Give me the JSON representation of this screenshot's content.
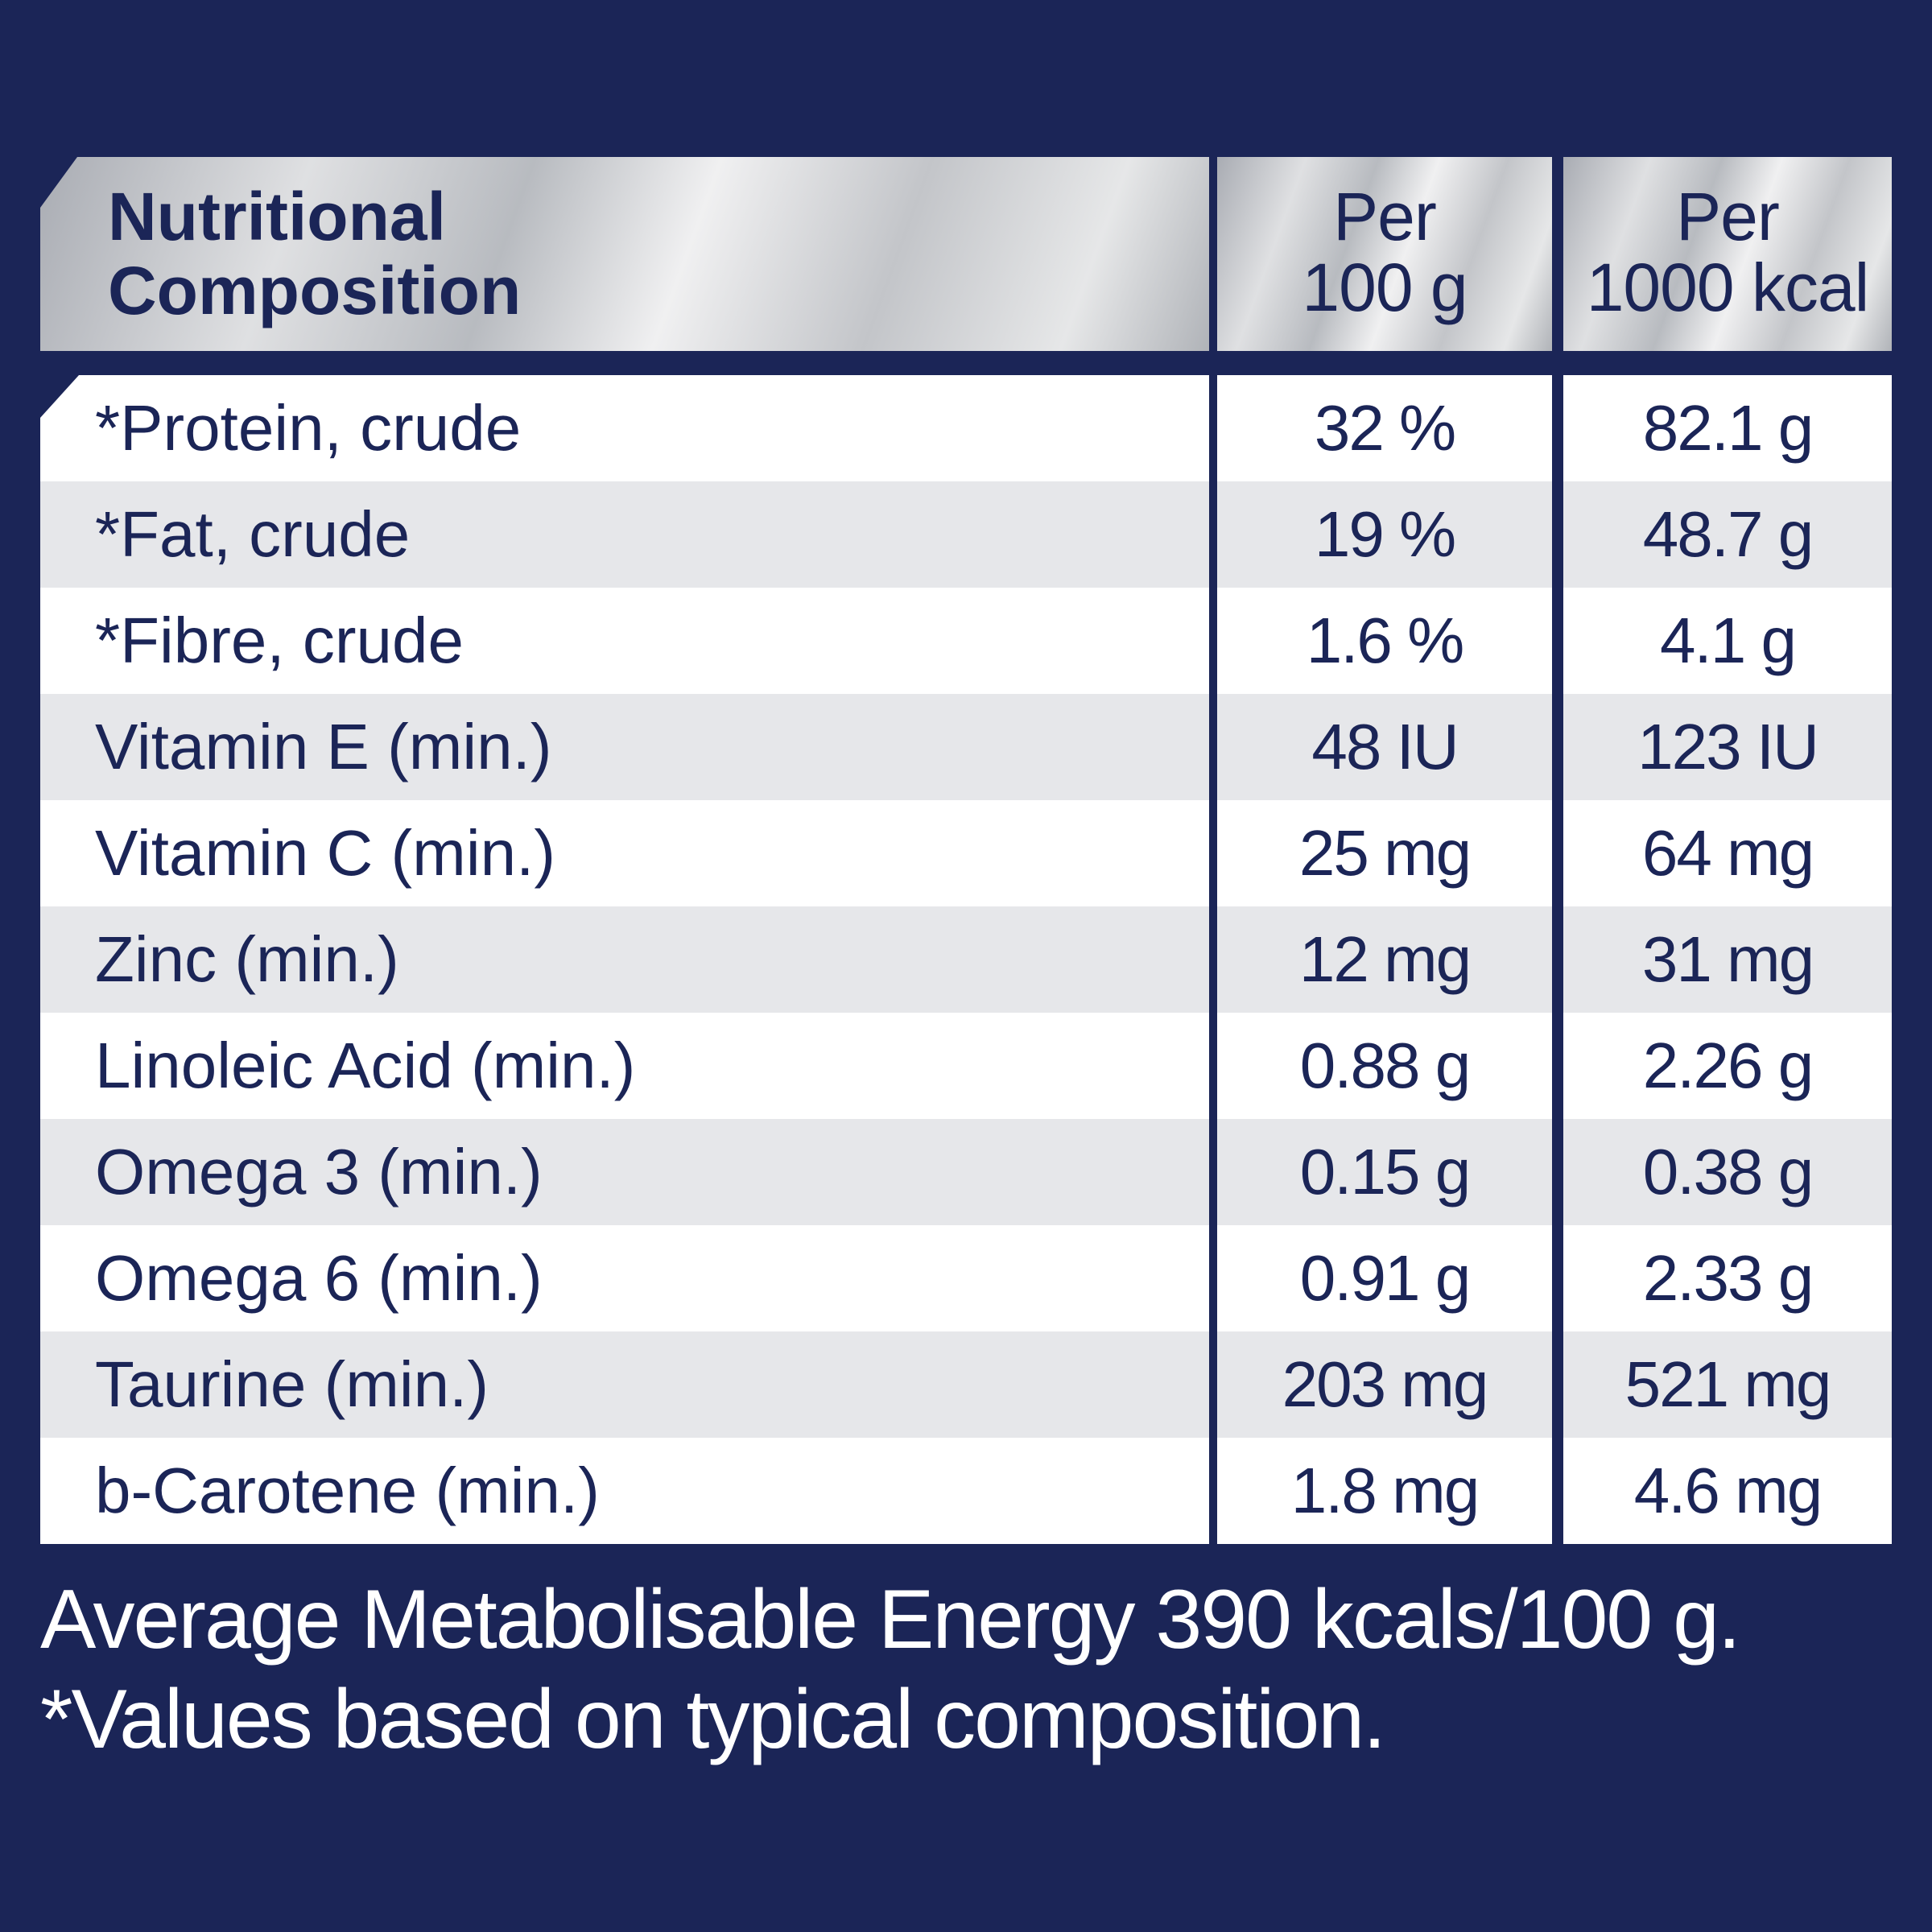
{
  "colors": {
    "background": "#1b2557",
    "text_dark": "#1b2557",
    "row_white": "#ffffff",
    "row_gray": "#e6e7ea",
    "header_silver": "#d2d4d7",
    "footer_text": "#ffffff"
  },
  "table": {
    "header": {
      "name_line1": "Nutritional",
      "name_line2": "Composition",
      "col1_line1": "Per",
      "col1_line2": "100 g",
      "col2_line1": "Per",
      "col2_line2": "1000 kcal"
    },
    "rows": [
      {
        "name": "*Protein, crude",
        "per100g": "32 %",
        "per1000kcal": "82.1 g"
      },
      {
        "name": "*Fat, crude",
        "per100g": "19 %",
        "per1000kcal": "48.7 g"
      },
      {
        "name": "*Fibre, crude",
        "per100g": "1.6 %",
        "per1000kcal": "4.1 g"
      },
      {
        "name": "Vitamin E (min.)",
        "per100g": "48 IU",
        "per1000kcal": "123 IU"
      },
      {
        "name": "Vitamin C (min.)",
        "per100g": "25 mg",
        "per1000kcal": "64 mg"
      },
      {
        "name": "Zinc (min.)",
        "per100g": "12 mg",
        "per1000kcal": "31 mg"
      },
      {
        "name": "Linoleic Acid (min.)",
        "per100g": "0.88 g",
        "per1000kcal": "2.26 g"
      },
      {
        "name": "Omega 3 (min.)",
        "per100g": "0.15 g",
        "per1000kcal": "0.38 g"
      },
      {
        "name": "Omega 6 (min.)",
        "per100g": "0.91 g",
        "per1000kcal": "2.33 g"
      },
      {
        "name": "Taurine (min.)",
        "per100g": "203 mg",
        "per1000kcal": "521 mg"
      },
      {
        "name": "b-Carotene (min.)",
        "per100g": "1.8 mg",
        "per1000kcal": "4.6 mg"
      }
    ]
  },
  "footer": {
    "energy": "Average Metabolisable Energy 390 kcals/100 g.",
    "note": "*Values based on typical composition."
  }
}
